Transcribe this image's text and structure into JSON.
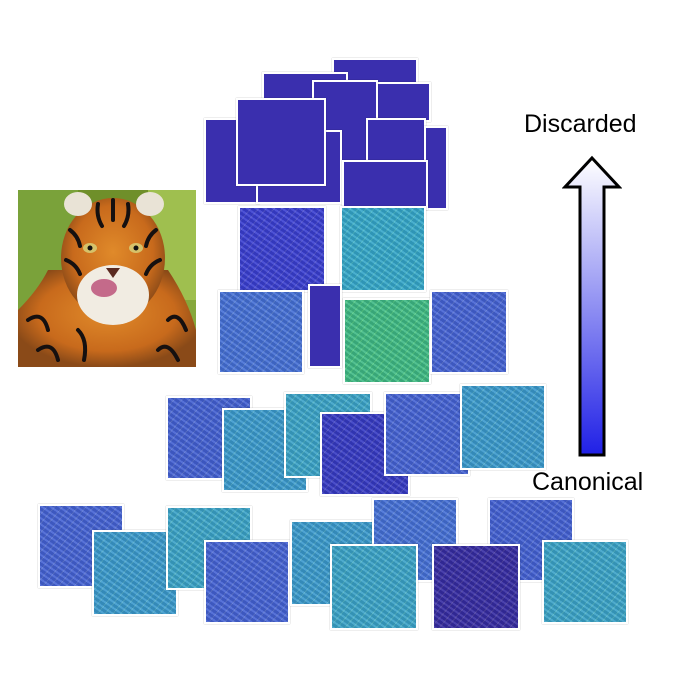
{
  "labels": {
    "top": "Discarded",
    "bottom": "Canonical"
  },
  "colors": {
    "discarded": "#3a2fae",
    "blue": "#3e43e0",
    "cyan": "#38b4d8",
    "green": "#43c98e",
    "arrow_top": "#ffffff",
    "arrow_bottom": "#2020e6"
  },
  "image": {
    "subject": "tiger-photo"
  },
  "arrow": {
    "direction": "up",
    "icon": "up-arrow-icon"
  }
}
